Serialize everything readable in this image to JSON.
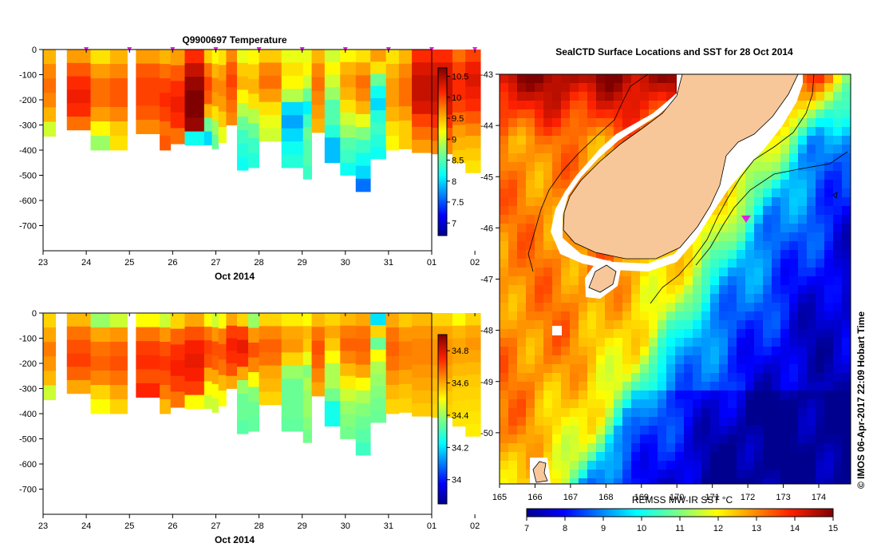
{
  "chart_data": [
    {
      "type": "heatmap",
      "title": "Q9900697  Temperature",
      "xlabel": "Oct 2014",
      "ylabel": "",
      "x_ticks": [
        "23",
        "24",
        "25",
        "26",
        "27",
        "28",
        "29",
        "30",
        "31",
        "01",
        "02"
      ],
      "y_ticks": [
        0,
        -100,
        -200,
        -300,
        -400,
        -500,
        -600,
        -700
      ],
      "ylim": [
        -800,
        0
      ],
      "colorbar": {
        "min": 6.7,
        "max": 10.7,
        "ticks": [
          "7",
          "7.5",
          "8",
          "8.5",
          "9",
          "9.5",
          "10",
          "10.5"
        ],
        "tick_values": [
          7,
          7.5,
          8,
          8.5,
          9,
          9.5,
          10,
          10.5
        ]
      },
      "profile_markers_days": [
        24,
        25,
        26,
        27,
        28,
        29,
        30,
        31,
        32,
        33
      ],
      "profiles": [
        {
          "day": 23.0,
          "w": 0.29,
          "depth": 345,
          "v": [
            9.5,
            9.7,
            9.8,
            9.7,
            9.5,
            9.0
          ]
        },
        {
          "day": 23.55,
          "w": 0.55,
          "depth": 320,
          "v": [
            9.6,
            9.9,
            10.1,
            10.2,
            10.1,
            9.8
          ]
        },
        {
          "day": 24.1,
          "w": 0.45,
          "depth": 400,
          "v": [
            9.3,
            9.6,
            9.8,
            9.8,
            9.6,
            9.2,
            8.8
          ]
        },
        {
          "day": 24.55,
          "w": 0.4,
          "depth": 400,
          "v": [
            9.5,
            9.7,
            9.9,
            9.9,
            9.7,
            9.4,
            9.3
          ]
        },
        {
          "day": 25.15,
          "w": 0.55,
          "depth": 335,
          "v": [
            9.6,
            9.9,
            10.0,
            10.0,
            9.9,
            9.7
          ]
        },
        {
          "day": 25.7,
          "w": 0.25,
          "depth": 400,
          "v": [
            9.5,
            9.8,
            10.0,
            10.1,
            10.0,
            9.8,
            9.9
          ]
        },
        {
          "day": 25.95,
          "w": 0.33,
          "depth": 375,
          "v": [
            9.6,
            9.9,
            10.1,
            10.2,
            10.1,
            9.8
          ]
        },
        {
          "day": 26.28,
          "w": 0.45,
          "depth": 380,
          "v": [
            10.1,
            10.4,
            10.6,
            10.7,
            10.7,
            10.6,
            8.2
          ]
        },
        {
          "day": 26.73,
          "w": 0.18,
          "depth": 380,
          "v": [
            9.4,
            9.8,
            10.0,
            9.9,
            9.5,
            8.6,
            8.0
          ]
        },
        {
          "day": 26.91,
          "w": 0.15,
          "depth": 395,
          "v": [
            9.2,
            9.5,
            9.7,
            9.6,
            9.3,
            8.8,
            8.6
          ]
        },
        {
          "day": 27.06,
          "w": 0.18,
          "depth": 370,
          "v": [
            9.3,
            9.6,
            9.7,
            9.6,
            9.4,
            9.1
          ]
        },
        {
          "day": 27.24,
          "w": 0.25,
          "depth": 300,
          "v": [
            9.7,
            9.9,
            10.0,
            9.9,
            9.8,
            9.7
          ]
        },
        {
          "day": 27.49,
          "w": 0.26,
          "depth": 480,
          "v": [
            9.1,
            9.4,
            9.5,
            9.2,
            8.9,
            8.6,
            8.4,
            8.3,
            8.2
          ]
        },
        {
          "day": 27.75,
          "w": 0.25,
          "depth": 470,
          "v": [
            9.2,
            9.4,
            9.5,
            9.3,
            8.9,
            8.6,
            8.4,
            8.3
          ]
        },
        {
          "day": 28.0,
          "w": 0.52,
          "depth": 365,
          "v": [
            9.4,
            9.7,
            9.8,
            9.6,
            9.3,
            9.1,
            9.0
          ]
        },
        {
          "day": 28.52,
          "w": 0.5,
          "depth": 470,
          "v": [
            9.1,
            9.3,
            9.2,
            8.9,
            8.0,
            7.8,
            8.0,
            8.2,
            8.3
          ]
        },
        {
          "day": 29.02,
          "w": 0.2,
          "depth": 515,
          "v": [
            9.1,
            9.2,
            9.0,
            8.6,
            8.1,
            8.4,
            8.6,
            8.5,
            8.5,
            8.4
          ]
        },
        {
          "day": 29.22,
          "w": 0.3,
          "depth": 330,
          "v": [
            9.5,
            9.7,
            9.8,
            9.7,
            9.6,
            9.5
          ]
        },
        {
          "day": 29.52,
          "w": 0.36,
          "depth": 450,
          "v": [
            9.0,
            9.2,
            9.0,
            8.8,
            8.5,
            8.5,
            8.3,
            7.9,
            7.9
          ]
        },
        {
          "day": 29.88,
          "w": 0.36,
          "depth": 500,
          "v": [
            9.2,
            9.5,
            9.6,
            9.5,
            9.3,
            9.0,
            8.8,
            8.5,
            8.4,
            8.2
          ]
        },
        {
          "day": 30.24,
          "w": 0.34,
          "depth": 565,
          "v": [
            9.3,
            9.6,
            9.8,
            9.7,
            9.5,
            9.1,
            8.7,
            8.4,
            8.2,
            8.0,
            7.6
          ]
        },
        {
          "day": 30.58,
          "w": 0.36,
          "depth": 435,
          "v": [
            9.6,
            9.3,
            8.6,
            8.2,
            8.0,
            8.3,
            8.4,
            8.3,
            8.2
          ]
        },
        {
          "day": 30.94,
          "w": 0.3,
          "depth": 400,
          "v": [
            9.3,
            9.5,
            9.6,
            9.6,
            9.5,
            9.3,
            9.2
          ]
        },
        {
          "day": 31.24,
          "w": 0.3,
          "depth": 395,
          "v": [
            9.5,
            9.7,
            9.8,
            9.8,
            9.6,
            9.4,
            9.4
          ]
        },
        {
          "day": 31.54,
          "w": 0.46,
          "depth": 410,
          "v": [
            10.1,
            10.3,
            10.4,
            10.4,
            10.3,
            10.0,
            9.8,
            9.6
          ]
        },
        {
          "day": 32.0,
          "w": 0.48,
          "depth": 415,
          "v": [
            10.1,
            10.3,
            10.4,
            10.4,
            10.3,
            10.1,
            9.9,
            9.7
          ]
        },
        {
          "day": 32.48,
          "w": 0.3,
          "depth": 450,
          "v": [
            9.8,
            10.0,
            10.1,
            10.1,
            10.0,
            9.8,
            9.6,
            9.5,
            9.4
          ]
        },
        {
          "day": 32.78,
          "w": 0.35,
          "depth": 490,
          "v": [
            10.0,
            10.2,
            10.3,
            10.2,
            10.1,
            9.9,
            9.7,
            9.5,
            9.4,
            9.3
          ]
        }
      ]
    },
    {
      "type": "heatmap",
      "title": "",
      "xlabel": "Oct 2014",
      "ylabel": "",
      "x_ticks": [
        "23",
        "24",
        "25",
        "26",
        "27",
        "28",
        "29",
        "30",
        "31",
        "01",
        "02"
      ],
      "y_ticks": [
        0,
        -100,
        -200,
        -300,
        -400,
        -500,
        -600,
        -700
      ],
      "ylim": [
        -800,
        0
      ],
      "colorbar": {
        "min": 33.85,
        "max": 34.9,
        "ticks": [
          "34",
          "34.2",
          "34.4",
          "34.6",
          "34.8"
        ],
        "tick_values": [
          34.0,
          34.2,
          34.4,
          34.6,
          34.8
        ]
      },
      "profiles": [
        {
          "day": 23.0,
          "w": 0.29,
          "depth": 345,
          "v": [
            34.55,
            34.6,
            34.65,
            34.62,
            34.58,
            34.45
          ]
        },
        {
          "day": 23.55,
          "w": 0.55,
          "depth": 320,
          "v": [
            34.58,
            34.66,
            34.7,
            34.72,
            34.68,
            34.6
          ]
        },
        {
          "day": 24.1,
          "w": 0.45,
          "depth": 400,
          "v": [
            34.4,
            34.6,
            34.66,
            34.68,
            34.64,
            34.55,
            34.5
          ]
        },
        {
          "day": 24.55,
          "w": 0.4,
          "depth": 400,
          "v": [
            34.45,
            34.62,
            34.68,
            34.7,
            34.66,
            34.6,
            34.55
          ]
        },
        {
          "day": 25.15,
          "w": 0.55,
          "depth": 335,
          "v": [
            34.5,
            34.66,
            34.72,
            34.74,
            34.7,
            34.75
          ]
        },
        {
          "day": 25.7,
          "w": 0.25,
          "depth": 400,
          "v": [
            34.45,
            34.62,
            34.7,
            34.73,
            34.7,
            34.65,
            34.58
          ]
        },
        {
          "day": 25.95,
          "w": 0.33,
          "depth": 375,
          "v": [
            34.55,
            34.68,
            34.74,
            34.76,
            34.72,
            34.66
          ]
        },
        {
          "day": 26.28,
          "w": 0.45,
          "depth": 380,
          "v": [
            34.6,
            34.7,
            34.76,
            34.78,
            34.76,
            34.72,
            34.5
          ]
        },
        {
          "day": 26.73,
          "w": 0.18,
          "depth": 380,
          "v": [
            34.5,
            34.66,
            34.72,
            34.7,
            34.6,
            34.5,
            34.45
          ]
        },
        {
          "day": 26.91,
          "w": 0.15,
          "depth": 395,
          "v": [
            34.45,
            34.62,
            34.7,
            34.68,
            34.6,
            34.5,
            34.45
          ]
        },
        {
          "day": 27.06,
          "w": 0.18,
          "depth": 370,
          "v": [
            34.5,
            34.65,
            34.7,
            34.66,
            34.58,
            34.5
          ]
        },
        {
          "day": 27.24,
          "w": 0.25,
          "depth": 300,
          "v": [
            34.6,
            34.72,
            34.76,
            34.74,
            34.7,
            34.6
          ]
        },
        {
          "day": 27.49,
          "w": 0.26,
          "depth": 480,
          "v": [
            34.55,
            34.72,
            34.78,
            34.74,
            34.6,
            34.4,
            34.35,
            34.35,
            34.33
          ]
        },
        {
          "day": 27.75,
          "w": 0.25,
          "depth": 470,
          "v": [
            34.4,
            34.62,
            34.7,
            34.64,
            34.5,
            34.38,
            34.35,
            34.34
          ]
        },
        {
          "day": 28.0,
          "w": 0.52,
          "depth": 365,
          "v": [
            34.55,
            34.64,
            34.68,
            34.66,
            34.6,
            34.58,
            34.55
          ]
        },
        {
          "day": 28.52,
          "w": 0.5,
          "depth": 470,
          "v": [
            34.52,
            34.6,
            34.62,
            34.55,
            34.4,
            34.35,
            34.35,
            34.35,
            34.34
          ]
        },
        {
          "day": 29.02,
          "w": 0.2,
          "depth": 515,
          "v": [
            34.5,
            34.58,
            34.56,
            34.48,
            34.38,
            34.42,
            34.4,
            34.4,
            34.38,
            34.36
          ]
        },
        {
          "day": 29.22,
          "w": 0.3,
          "depth": 330,
          "v": [
            34.58,
            34.66,
            34.7,
            34.68,
            34.64,
            34.6
          ]
        },
        {
          "day": 29.52,
          "w": 0.36,
          "depth": 450,
          "v": [
            34.55,
            34.6,
            34.56,
            34.5,
            34.42,
            34.42,
            34.36,
            34.25,
            34.25
          ]
        },
        {
          "day": 29.88,
          "w": 0.36,
          "depth": 500,
          "v": [
            34.58,
            34.65,
            34.68,
            34.64,
            34.58,
            34.52,
            34.45,
            34.4,
            34.38,
            34.36
          ]
        },
        {
          "day": 30.24,
          "w": 0.34,
          "depth": 565,
          "v": [
            34.6,
            34.66,
            34.68,
            34.66,
            34.6,
            34.5,
            34.42,
            34.38,
            34.35,
            34.33,
            34.3
          ]
        },
        {
          "day": 30.58,
          "w": 0.36,
          "depth": 435,
          "v": [
            34.2,
            34.55,
            34.35,
            34.5,
            34.42,
            34.4,
            34.38,
            34.36,
            34.35
          ]
        },
        {
          "day": 30.94,
          "w": 0.3,
          "depth": 400,
          "v": [
            34.6,
            34.66,
            34.68,
            34.66,
            34.62,
            34.58,
            34.55
          ]
        },
        {
          "day": 31.24,
          "w": 0.3,
          "depth": 395,
          "v": [
            34.56,
            34.62,
            34.65,
            34.64,
            34.6,
            34.57,
            34.55
          ]
        },
        {
          "day": 31.54,
          "w": 0.46,
          "depth": 410,
          "v": [
            34.58,
            34.62,
            34.64,
            34.64,
            34.62,
            34.6,
            34.58,
            34.56
          ]
        },
        {
          "day": 32.0,
          "w": 0.48,
          "depth": 415,
          "v": [
            34.55,
            34.6,
            34.62,
            34.62,
            34.6,
            34.58,
            34.56,
            34.55
          ]
        },
        {
          "day": 32.48,
          "w": 0.3,
          "depth": 450,
          "v": [
            34.5,
            34.58,
            34.6,
            34.6,
            34.58,
            34.56,
            34.55,
            34.54,
            34.53
          ]
        },
        {
          "day": 32.78,
          "w": 0.35,
          "depth": 490,
          "v": [
            34.55,
            34.6,
            34.62,
            34.6,
            34.58,
            34.56,
            34.55,
            34.54,
            34.53,
            34.52
          ]
        }
      ]
    },
    {
      "type": "heatmap",
      "title": "SealCTD Surface Locations and SST for 28 Oct 2014",
      "xlabel": "REMSS MW-IR SST  °C",
      "ylabel": "",
      "x_ticks": [
        "165",
        "166",
        "167",
        "168",
        "169",
        "170",
        "171",
        "172",
        "173",
        "174"
      ],
      "y_ticks": [
        "-43",
        "-44",
        "-45",
        "-46",
        "-47",
        "-48",
        "-49",
        "-50"
      ],
      "lon_range": [
        165,
        174.9
      ],
      "lat_range": [
        -51,
        -43
      ],
      "colorbar": {
        "min": 7,
        "max": 15,
        "ticks": [
          "7",
          "8",
          "9",
          "10",
          "11",
          "12",
          "13",
          "14",
          "15"
        ],
        "tick_values": [
          7,
          8,
          9,
          10,
          11,
          12,
          13,
          14,
          15
        ]
      },
      "seal_position": {
        "lon": 171.95,
        "lat": -45.82
      }
    }
  ],
  "watermark": "©  IMOS 06-Apr-2017 22:09 Hobart Time",
  "colors": {
    "land": "#f7c79a",
    "marker": "#e21ee2",
    "axis": "#000000",
    "background": "#ffffff"
  }
}
